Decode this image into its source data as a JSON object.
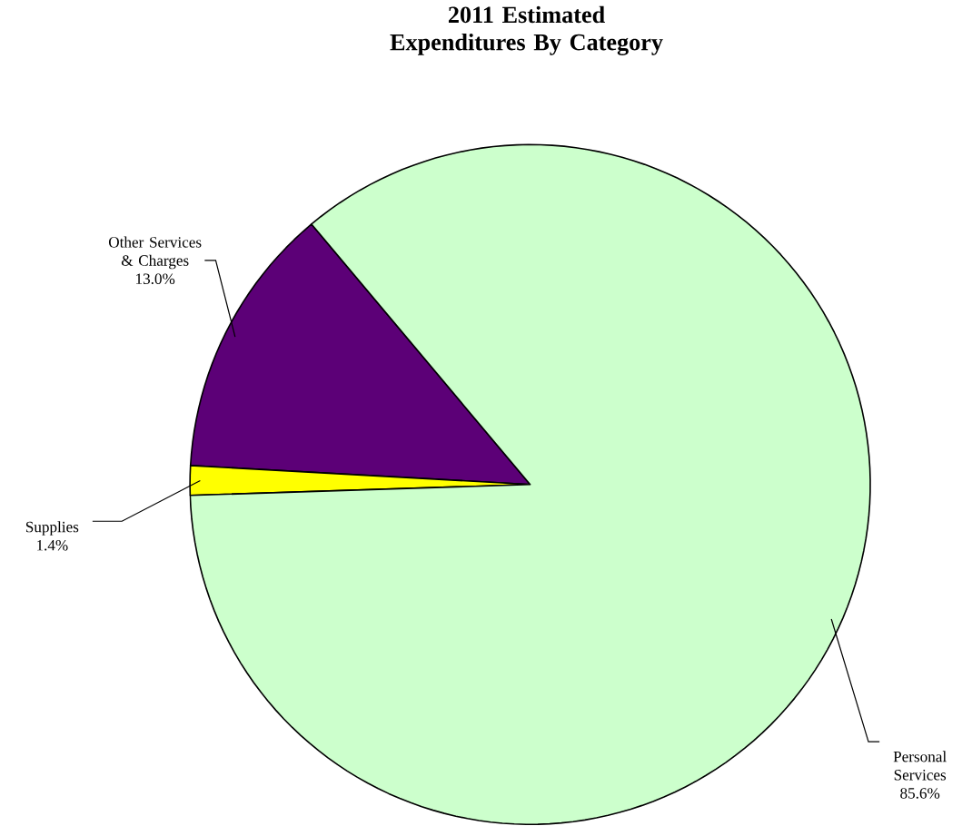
{
  "chart_data": {
    "type": "pie",
    "title": "2011 Estimated Expenditures By Category",
    "categories": [
      "Other Services & Charges",
      "Supplies",
      "Personal Services"
    ],
    "values": [
      13.0,
      1.4,
      85.6
    ],
    "value_labels": [
      "13.0%",
      "1.4%",
      "85.6%"
    ],
    "colors": [
      "#5c0077",
      "#ffff00",
      "#ccffcc"
    ]
  }
}
